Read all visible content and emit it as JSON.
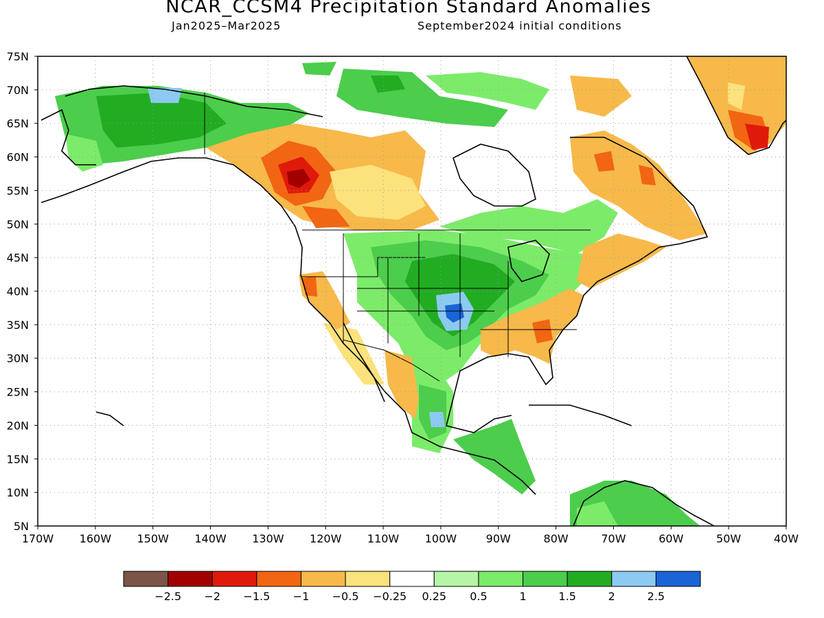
{
  "title": "NCAR_CCSM4 Precipitation Standard Anomalies",
  "subtitle_left": "Jan2025–Mar2025",
  "subtitle_right": "September2024 initial conditions",
  "map": {
    "lon_labels": [
      "170W",
      "160W",
      "150W",
      "140W",
      "130W",
      "120W",
      "110W",
      "100W",
      "90W",
      "80W",
      "70W",
      "60W",
      "50W",
      "40W"
    ],
    "lat_labels": [
      "75N",
      "70N",
      "65N",
      "60N",
      "55N",
      "50N",
      "45N",
      "40N",
      "35N",
      "30N",
      "25N",
      "20N",
      "15N",
      "10N",
      "5N"
    ],
    "anomaly_regions": [
      {
        "region": "Alaska / Yukon",
        "category": "1 to 1.5"
      },
      {
        "region": "NW Canada / British Columbia",
        "category": "-1 to -1.5"
      },
      {
        "region": "Great Plains / Midwest",
        "category": "1 to 2"
      },
      {
        "region": "Oklahoma / Texas",
        "category": "2 to 2.5"
      },
      {
        "region": "Southeast US",
        "category": "-0.5 to -1.5"
      },
      {
        "region": "Greenland south tip",
        "category": "-2 to -2.5"
      }
    ]
  },
  "legend": {
    "tick_labels": [
      "−2.5",
      "−2",
      "−1.5",
      "−1",
      "−0.5",
      "−0.25",
      "0.25",
      "0.5",
      "1",
      "1.5",
      "2",
      "2.5"
    ],
    "colors": [
      "#7b5547",
      "#a20000",
      "#e01a0a",
      "#f26512",
      "#f7b94a",
      "#fbe27d",
      "#ffffff",
      "#b7f5a6",
      "#7ceb6a",
      "#4ccd4c",
      "#22ac22",
      "#8ccaf2",
      "#1a64d6"
    ]
  }
}
